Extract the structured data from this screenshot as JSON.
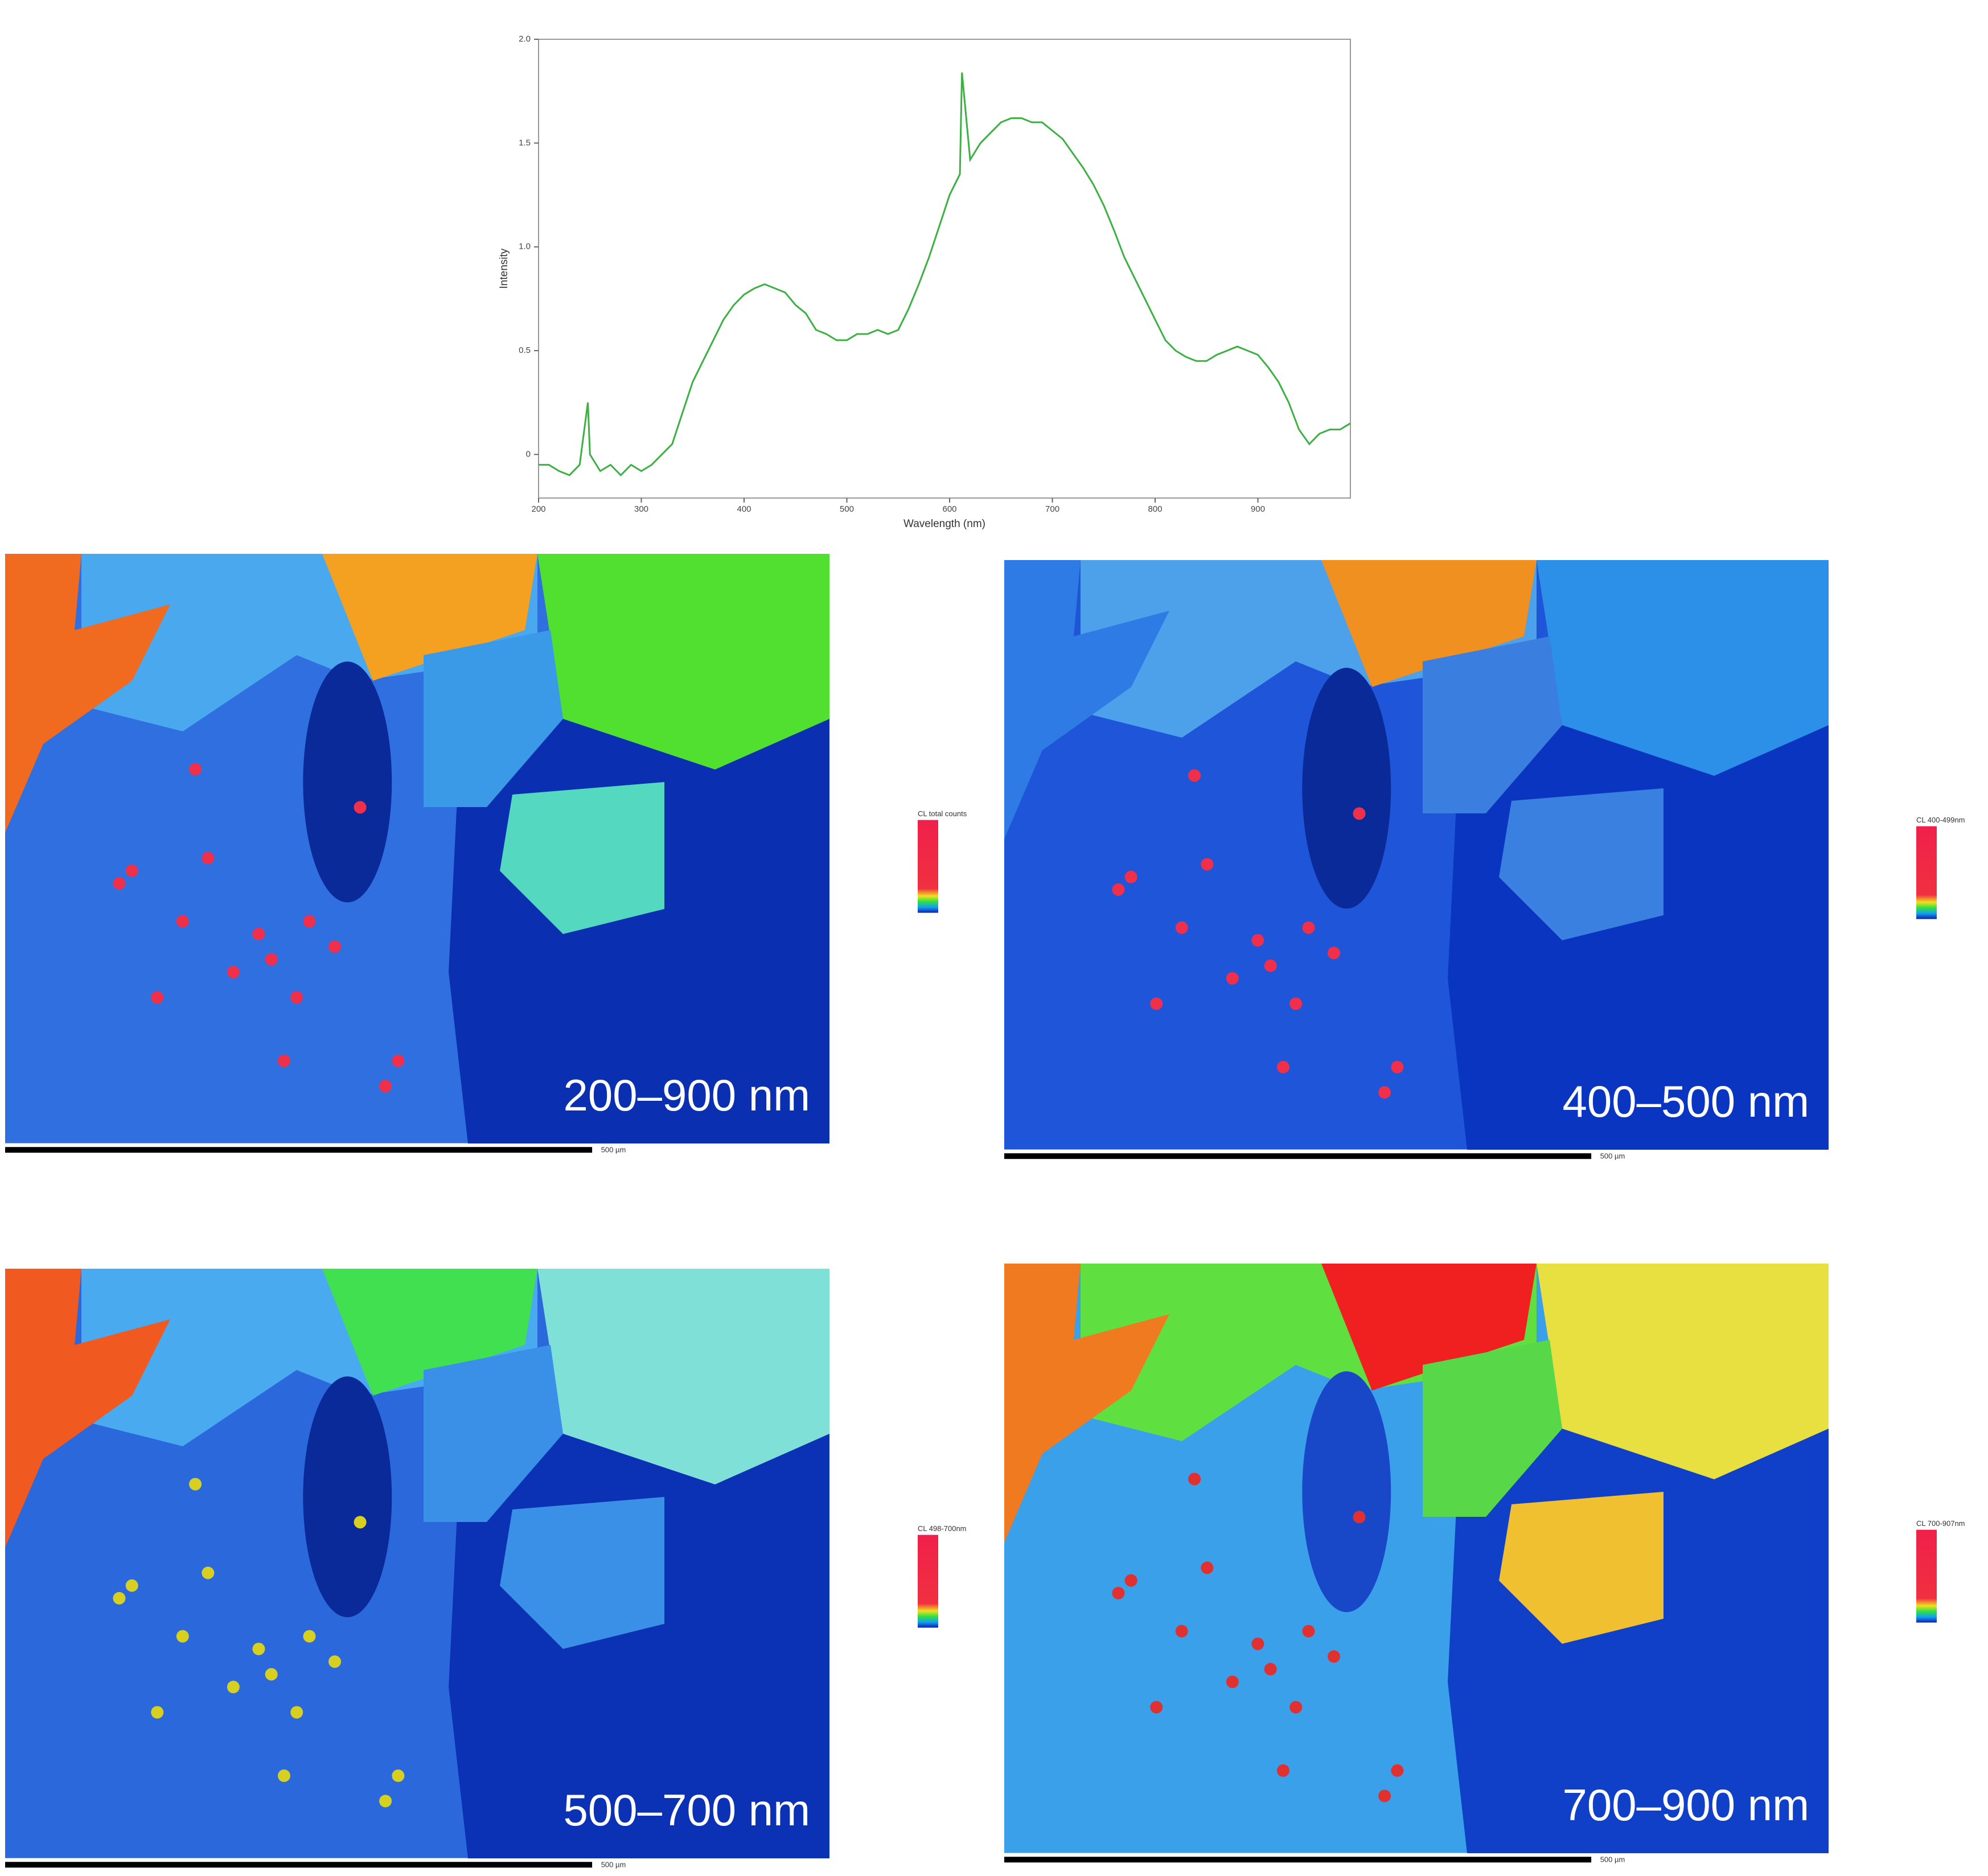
{
  "chart_data": {
    "type": "line",
    "x_label": "Wavelength (nm)",
    "y_label": "Intensity",
    "color": "#3cb043",
    "x": [
      200,
      210,
      220,
      230,
      240,
      248,
      250,
      260,
      270,
      280,
      290,
      300,
      310,
      320,
      330,
      340,
      350,
      360,
      370,
      380,
      390,
      400,
      410,
      420,
      430,
      440,
      450,
      460,
      470,
      480,
      490,
      500,
      510,
      520,
      530,
      540,
      550,
      560,
      570,
      580,
      590,
      600,
      610,
      612,
      620,
      630,
      640,
      650,
      660,
      670,
      680,
      690,
      700,
      710,
      720,
      730,
      740,
      750,
      760,
      770,
      780,
      790,
      800,
      810,
      820,
      830,
      840,
      850,
      860,
      870,
      880,
      890,
      900,
      910,
      920,
      930,
      940,
      950,
      960,
      970,
      980,
      990
    ],
    "values": [
      -0.05,
      -0.05,
      -0.08,
      -0.1,
      -0.05,
      0.25,
      0.0,
      -0.08,
      -0.05,
      -0.1,
      -0.05,
      -0.08,
      -0.05,
      0.0,
      0.05,
      0.2,
      0.35,
      0.45,
      0.55,
      0.65,
      0.72,
      0.77,
      0.8,
      0.82,
      0.8,
      0.78,
      0.72,
      0.68,
      0.6,
      0.58,
      0.55,
      0.55,
      0.58,
      0.58,
      0.6,
      0.58,
      0.6,
      0.7,
      0.82,
      0.95,
      1.1,
      1.25,
      1.35,
      1.84,
      1.42,
      1.5,
      1.55,
      1.6,
      1.62,
      1.62,
      1.6,
      1.6,
      1.56,
      1.52,
      1.45,
      1.38,
      1.3,
      1.2,
      1.08,
      0.95,
      0.85,
      0.75,
      0.65,
      0.55,
      0.5,
      0.47,
      0.45,
      0.45,
      0.48,
      0.5,
      0.52,
      0.5,
      0.48,
      0.42,
      0.35,
      0.25,
      0.12,
      0.05,
      0.1,
      0.12,
      0.12,
      0.15
    ],
    "xlim": [
      200,
      990
    ],
    "ylim": [
      -0.21,
      2.0
    ],
    "xticks": [
      200,
      300,
      400,
      500,
      600,
      700,
      800,
      900
    ],
    "yticks": [
      0,
      0.5,
      {
        "value": 1.0,
        "label": "1.0"
      },
      1.5,
      {
        "value": 2.0,
        "label": "2.0"
      }
    ]
  },
  "panels": [
    {
      "label": "200–900 nm",
      "colorbar_title": "CL total counts",
      "scale_bar": "500 µm"
    },
    {
      "label": "400–500 nm",
      "colorbar_title": "CL 400-499nm",
      "scale_bar": "500 µm"
    },
    {
      "label": "500–700 nm",
      "colorbar_title": "CL 498-700nm",
      "scale_bar": "500 µm"
    },
    {
      "label": "700–900 nm",
      "colorbar_title": "CL 700-907nm",
      "scale_bar": "500 µm"
    }
  ]
}
